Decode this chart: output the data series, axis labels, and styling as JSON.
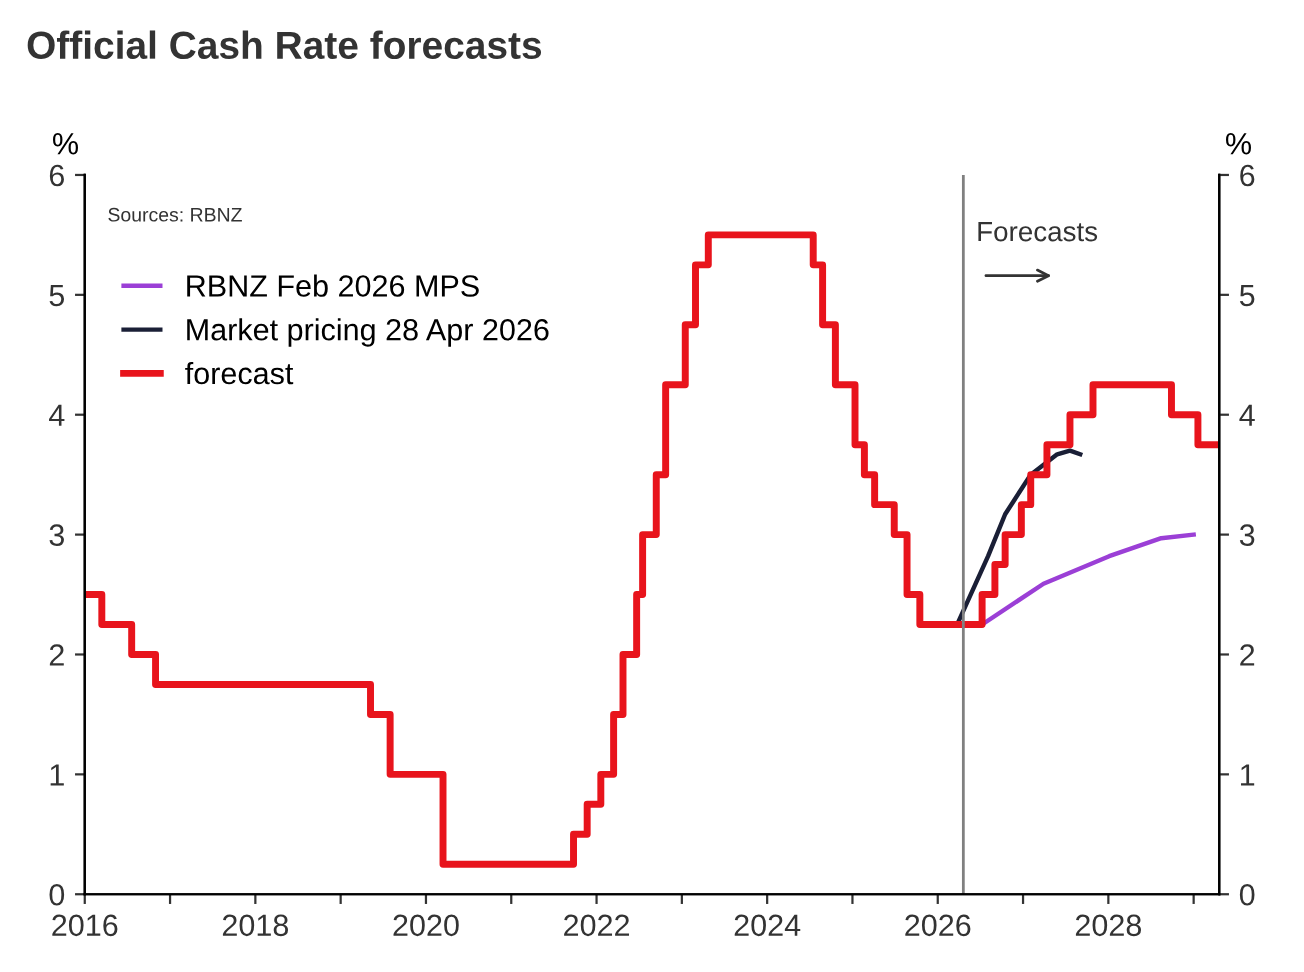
{
  "chart_data": {
    "type": "line",
    "title": "Official Cash Rate forecasts",
    "ylabel": "%",
    "y2label": "%",
    "annotations": [
      "Sources: RBNZ",
      "Forecasts"
    ],
    "series": [
      {
        "name": "RBNZ Feb 2026 MPS",
        "color": "#9b3fd6",
        "x": [
          2026.52,
          2027.24,
          2028.01,
          2028.62,
          2029.0
        ],
        "values": [
          2.25,
          2.59,
          2.82,
          2.97,
          3.0
        ]
      },
      {
        "name": "Market pricing 28 Apr 2026",
        "color": "#1a1f36",
        "x": [
          2026.24,
          2026.59,
          2026.79,
          2027.09,
          2027.4,
          2027.55,
          2027.67
        ],
        "values": [
          2.27,
          2.82,
          3.17,
          3.5,
          3.67,
          3.7,
          3.67
        ]
      },
      {
        "name": "forecast",
        "type": "step",
        "color": "#e8141c",
        "x": [
          2016.0,
          2016.2,
          2016.55,
          2016.83,
          2019.35,
          2019.58,
          2020.2,
          2021.73,
          2021.89,
          2022.05,
          2022.2,
          2022.31,
          2022.47,
          2022.54,
          2022.7,
          2022.81,
          2023.04,
          2023.16,
          2023.31,
          2024.54,
          2024.65,
          2024.8,
          2025.03,
          2025.14,
          2025.26,
          2025.49,
          2025.64,
          2025.79,
          2026.52,
          2026.67,
          2026.79,
          2026.98,
          2027.09,
          2027.28,
          2027.55,
          2027.82,
          2028.74,
          2029.05,
          2029.27
        ],
        "values": [
          2.5,
          2.25,
          2.0,
          1.75,
          1.5,
          1.0,
          0.25,
          0.5,
          0.75,
          1.0,
          1.5,
          2.0,
          2.5,
          3.0,
          3.5,
          4.25,
          4.75,
          5.25,
          5.5,
          5.25,
          4.75,
          4.25,
          3.75,
          3.5,
          3.25,
          3.0,
          2.5,
          2.25,
          2.5,
          2.75,
          3.0,
          3.25,
          3.5,
          3.75,
          4.0,
          4.25,
          4.0,
          3.75,
          3.75
        ]
      }
    ],
    "ref_lines": [
      {
        "axis": "x",
        "value": 2026.3,
        "color": "#808080"
      }
    ],
    "xlim": [
      2016,
      2029.3
    ],
    "xticks": [
      2016,
      {
        "value": 2017,
        "label": null
      },
      2018,
      {
        "value": 2019,
        "label": null
      },
      2020,
      {
        "value": 2021,
        "label": null
      },
      2022,
      {
        "value": 2023,
        "label": null
      },
      2024,
      {
        "value": 2025,
        "label": null
      },
      2026,
      {
        "value": 2027,
        "label": null
      },
      2028,
      {
        "value": 2029,
        "label": null
      }
    ],
    "ylim": [
      0,
      6
    ],
    "yticks": [
      0,
      1,
      2,
      3,
      4,
      5,
      6
    ],
    "y2lim": [
      0,
      6
    ],
    "y2ticks": [
      0,
      1,
      2,
      3,
      4,
      5,
      6
    ],
    "legend": "top left",
    "grid": false
  }
}
